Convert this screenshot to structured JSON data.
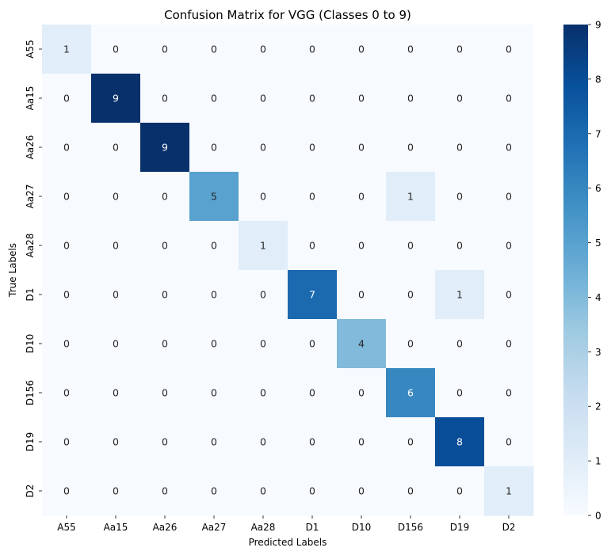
{
  "chart_data": {
    "type": "heatmap",
    "title": "Confusion Matrix for VGG (Classes 0 to 9)",
    "xlabel": "Predicted Labels",
    "ylabel": "True Labels",
    "x_categories": [
      "A55",
      "Aa15",
      "Aa26",
      "Aa27",
      "Aa28",
      "D1",
      "D10",
      "D156",
      "D19",
      "D2"
    ],
    "y_categories": [
      "A55",
      "Aa15",
      "Aa26",
      "Aa27",
      "Aa28",
      "D1",
      "D10",
      "D156",
      "D19",
      "D2"
    ],
    "values": [
      [
        1,
        0,
        0,
        0,
        0,
        0,
        0,
        0,
        0,
        0
      ],
      [
        0,
        9,
        0,
        0,
        0,
        0,
        0,
        0,
        0,
        0
      ],
      [
        0,
        0,
        9,
        0,
        0,
        0,
        0,
        0,
        0,
        0
      ],
      [
        0,
        0,
        0,
        5,
        0,
        0,
        0,
        1,
        0,
        0
      ],
      [
        0,
        0,
        0,
        0,
        1,
        0,
        0,
        0,
        0,
        0
      ],
      [
        0,
        0,
        0,
        0,
        0,
        7,
        0,
        0,
        1,
        0
      ],
      [
        0,
        0,
        0,
        0,
        0,
        0,
        4,
        0,
        0,
        0
      ],
      [
        0,
        0,
        0,
        0,
        0,
        0,
        0,
        6,
        0,
        0
      ],
      [
        0,
        0,
        0,
        0,
        0,
        0,
        0,
        0,
        8,
        0
      ],
      [
        0,
        0,
        0,
        0,
        0,
        0,
        0,
        0,
        0,
        1
      ]
    ],
    "colorbar": {
      "colormap": "Blues",
      "range": [
        0,
        9
      ],
      "ticks": [
        "0",
        "1",
        "2",
        "3",
        "4",
        "5",
        "6",
        "7",
        "8",
        "9"
      ]
    }
  }
}
